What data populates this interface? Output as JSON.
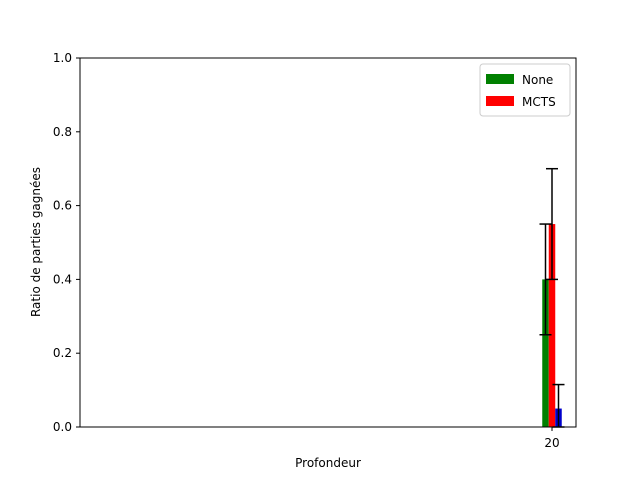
{
  "chart_data": {
    "type": "bar",
    "title": "",
    "xlabel": "Profondeur",
    "ylabel": "Ratio de parties gagnées",
    "categories": [
      "20"
    ],
    "ylim": [
      0,
      1.0
    ],
    "yticks": [
      "0.0",
      "0.2",
      "0.4",
      "0.6",
      "0.8",
      "1.0"
    ],
    "grid": false,
    "legend_position": "top-right",
    "series": [
      {
        "name": "None",
        "color": "#008000",
        "values": [
          0.4
        ],
        "error": [
          0.15
        ]
      },
      {
        "name": "MCTS",
        "color": "#ff0000",
        "values": [
          0.55
        ],
        "error": [
          0.15
        ]
      },
      {
        "name": "",
        "color": "#0000cc",
        "values": [
          0.05
        ],
        "error": [
          0.065
        ]
      }
    ]
  }
}
